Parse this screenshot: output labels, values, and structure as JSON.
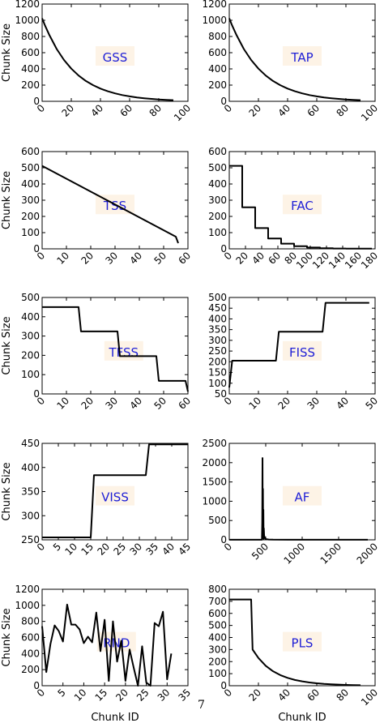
{
  "page_number": "7",
  "chart_data": [
    {
      "type": "line",
      "name": "GSS",
      "label": "GSS",
      "ylabel": "Chunk Size",
      "xlabel": "",
      "xlim": [
        0,
        100
      ],
      "ylim": [
        0,
        1200
      ],
      "xticks": [
        0,
        20,
        40,
        60,
        80,
        100
      ],
      "yticks": [
        0,
        200,
        400,
        600,
        800,
        1000,
        1200
      ],
      "x": [
        0,
        2,
        5,
        10,
        15,
        20,
        25,
        30,
        35,
        40,
        45,
        50,
        55,
        60,
        65,
        70,
        75,
        80,
        85,
        90
      ],
      "y": [
        1024,
        934,
        816,
        645,
        510,
        403,
        318,
        251,
        199,
        157,
        124,
        98,
        77,
        61,
        48,
        38,
        30,
        23,
        18,
        14
      ]
    },
    {
      "type": "line",
      "name": "TAP",
      "label": "TAP",
      "ylabel": "",
      "xlabel": "",
      "xlim": [
        0,
        100
      ],
      "ylim": [
        0,
        1200
      ],
      "xticks": [
        0,
        20,
        40,
        60,
        80,
        100
      ],
      "yticks": [
        0,
        200,
        400,
        600,
        800,
        1000,
        1200
      ],
      "x": [
        0,
        2,
        5,
        10,
        15,
        20,
        25,
        30,
        35,
        40,
        45,
        50,
        55,
        60,
        65,
        70,
        75,
        80,
        85,
        90
      ],
      "y": [
        1024,
        934,
        816,
        645,
        510,
        403,
        318,
        251,
        199,
        157,
        124,
        98,
        77,
        61,
        48,
        38,
        30,
        23,
        18,
        14
      ]
    },
    {
      "type": "line",
      "name": "TSS",
      "label": "TSS",
      "ylabel": "Chunk Size",
      "xlabel": "",
      "xlim": [
        0,
        60
      ],
      "ylim": [
        0,
        600
      ],
      "xticks": [
        0,
        10,
        20,
        30,
        40,
        50,
        60
      ],
      "yticks": [
        0,
        100,
        200,
        300,
        400,
        500,
        600
      ],
      "x": [
        0,
        55,
        56
      ],
      "y": [
        512,
        75,
        35
      ]
    },
    {
      "type": "line",
      "name": "FAC",
      "label": "FAC",
      "ylabel": "",
      "xlabel": "",
      "xlim": [
        0,
        180
      ],
      "ylim": [
        0,
        600
      ],
      "xticks": [
        0,
        20,
        40,
        60,
        80,
        100,
        120,
        140,
        160,
        180
      ],
      "yticks": [
        0,
        100,
        200,
        300,
        400,
        500,
        600
      ],
      "x": [
        0,
        16,
        16,
        32,
        32,
        48,
        48,
        64,
        64,
        80,
        80,
        96,
        96,
        112,
        112,
        128,
        128,
        144,
        144,
        176
      ],
      "y": [
        512,
        512,
        256,
        256,
        128,
        128,
        64,
        64,
        32,
        32,
        16,
        16,
        8,
        8,
        4,
        4,
        2,
        2,
        1,
        1
      ]
    },
    {
      "type": "line",
      "name": "TFSS",
      "label": "TFSS",
      "ylabel": "Chunk Size",
      "xlabel": "",
      "xlim": [
        0,
        60
      ],
      "ylim": [
        0,
        500
      ],
      "xticks": [
        0,
        10,
        20,
        30,
        40,
        50,
        60
      ],
      "yticks": [
        0,
        100,
        200,
        300,
        400,
        500
      ],
      "x": [
        0,
        15,
        16,
        31,
        32,
        47,
        48,
        59,
        60
      ],
      "y": [
        450,
        450,
        324,
        324,
        196,
        196,
        68,
        68,
        12
      ]
    },
    {
      "type": "line",
      "name": "FISS",
      "label": "FISS",
      "ylabel": "",
      "xlabel": "",
      "xlim": [
        0,
        50
      ],
      "ylim": [
        50,
        500
      ],
      "xticks": [
        0,
        10,
        20,
        30,
        40,
        50
      ],
      "yticks": [
        50,
        100,
        150,
        200,
        250,
        300,
        350,
        400,
        450,
        500
      ],
      "x": [
        0,
        1,
        16,
        17,
        32,
        33,
        48
      ],
      "y": [
        80,
        205,
        205,
        340,
        340,
        475,
        475
      ]
    },
    {
      "type": "line",
      "name": "VISS",
      "label": "VISS",
      "ylabel": "Chunk Size",
      "xlabel": "",
      "xlim": [
        0,
        45
      ],
      "ylim": [
        250,
        450
      ],
      "xticks": [
        0,
        5,
        10,
        15,
        20,
        25,
        30,
        35,
        40,
        45
      ],
      "yticks": [
        250,
        300,
        350,
        400,
        450
      ],
      "x": [
        0,
        15,
        16,
        32,
        33,
        45
      ],
      "y": [
        255,
        255,
        384,
        384,
        448,
        448
      ]
    },
    {
      "type": "line",
      "name": "AF",
      "label": "AF",
      "ylabel": "",
      "xlabel": "",
      "xlim": [
        0,
        2000
      ],
      "ylim": [
        0,
        2500
      ],
      "xticks": [
        0,
        500,
        1000,
        1500,
        2000
      ],
      "yticks": [
        0,
        500,
        1000,
        1500,
        2000,
        2500
      ],
      "x": [
        0,
        448,
        452,
        456,
        459,
        462,
        465,
        468,
        471,
        474,
        478,
        485,
        495,
        510,
        540,
        600,
        800,
        1900
      ],
      "y": [
        2,
        2,
        450,
        2120,
        60,
        1320,
        40,
        780,
        30,
        300,
        120,
        60,
        30,
        15,
        8,
        4,
        2,
        2
      ]
    },
    {
      "type": "line",
      "name": "RND",
      "label": "RND",
      "ylabel": "Chunk Size",
      "xlabel": "Chunk ID",
      "xlim": [
        0,
        35
      ],
      "ylim": [
        0,
        1200
      ],
      "xticks": [
        0,
        5,
        10,
        15,
        20,
        25,
        30,
        35
      ],
      "yticks": [
        0,
        200,
        400,
        600,
        800,
        1000,
        1200
      ],
      "x": [
        0,
        1,
        2,
        3,
        4,
        5,
        6,
        7,
        8,
        9,
        10,
        11,
        12,
        13,
        14,
        15,
        16,
        17,
        18,
        19,
        20,
        21,
        22,
        23,
        24,
        25,
        26,
        27,
        28,
        29,
        30,
        31
      ],
      "y": [
        740,
        170,
        520,
        750,
        680,
        550,
        1010,
        760,
        760,
        700,
        530,
        610,
        540,
        910,
        430,
        820,
        60,
        800,
        300,
        560,
        60,
        450,
        220,
        0,
        490,
        40,
        0,
        780,
        740,
        920,
        80,
        400
      ]
    },
    {
      "type": "line",
      "name": "PLS",
      "label": "PLS",
      "ylabel": "",
      "xlabel": "Chunk ID",
      "xlim": [
        0,
        100
      ],
      "ylim": [
        0,
        800
      ],
      "xticks": [
        0,
        20,
        40,
        60,
        80,
        100
      ],
      "yticks": [
        0,
        100,
        200,
        300,
        400,
        500,
        600,
        700,
        800
      ],
      "x": [
        0,
        15,
        16,
        20,
        25,
        30,
        35,
        40,
        45,
        50,
        55,
        60,
        65,
        70,
        75,
        80,
        85,
        90
      ],
      "y": [
        715,
        715,
        300,
        230,
        165,
        120,
        88,
        65,
        48,
        36,
        27,
        20,
        15,
        12,
        9,
        7,
        5,
        4
      ]
    }
  ]
}
